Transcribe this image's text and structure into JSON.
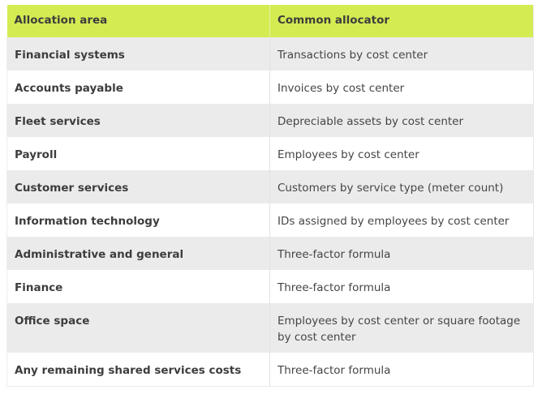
{
  "table": {
    "headers": [
      "Allocation area",
      "Common allocator"
    ],
    "rows": [
      [
        "Financial systems",
        "Transactions by cost center"
      ],
      [
        "Accounts payable",
        "Invoices by cost center"
      ],
      [
        "Fleet services",
        "Depreciable assets by cost center"
      ],
      [
        "Payroll",
        "Employees by cost center"
      ],
      [
        "Customer services",
        "Customers by service type (meter count)"
      ],
      [
        "Information technology",
        "IDs assigned by employees by cost center"
      ],
      [
        "Administrative and general",
        "Three-factor formula"
      ],
      [
        "Finance",
        "Three-factor formula"
      ],
      [
        "Office space",
        "Employees by cost center or square footage by cost center"
      ],
      [
        "Any remaining shared services costs",
        "Three-factor formula"
      ]
    ]
  },
  "colors": {
    "header": "#d4eb52",
    "stripe": "#ebebeb",
    "text": "#454545"
  }
}
